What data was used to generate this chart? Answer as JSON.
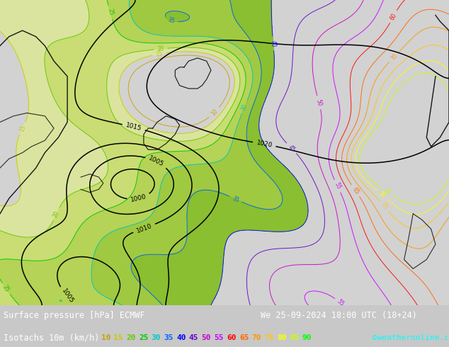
{
  "title_line1": "Surface pressure [hPa] ECMWF",
  "title_line2": "Isotachs 10m (km/h)",
  "date_str": "We 25-09-2024 18:00 UTC (18+24)",
  "credit": "©weatheronline.co.uk",
  "bg_color": "#c8c8c8",
  "map_bg_color": "#d2d2d2",
  "bottom_bar_color": "#000000",
  "isotach_vals": [
    10,
    15,
    20,
    25,
    30,
    35,
    40,
    45,
    50,
    55,
    60,
    65,
    70,
    75,
    80,
    85,
    90
  ],
  "legend_colors": [
    "#c8a000",
    "#c8c800",
    "#64c800",
    "#00c800",
    "#00c8c8",
    "#0064ff",
    "#0000ff",
    "#6400c8",
    "#c800c8",
    "#c800ff",
    "#ff0000",
    "#ff6400",
    "#ff9600",
    "#ffc800",
    "#ffff00",
    "#c8ff00",
    "#00ff00"
  ],
  "font_size": 8.5,
  "credit_color": "#00ffff"
}
